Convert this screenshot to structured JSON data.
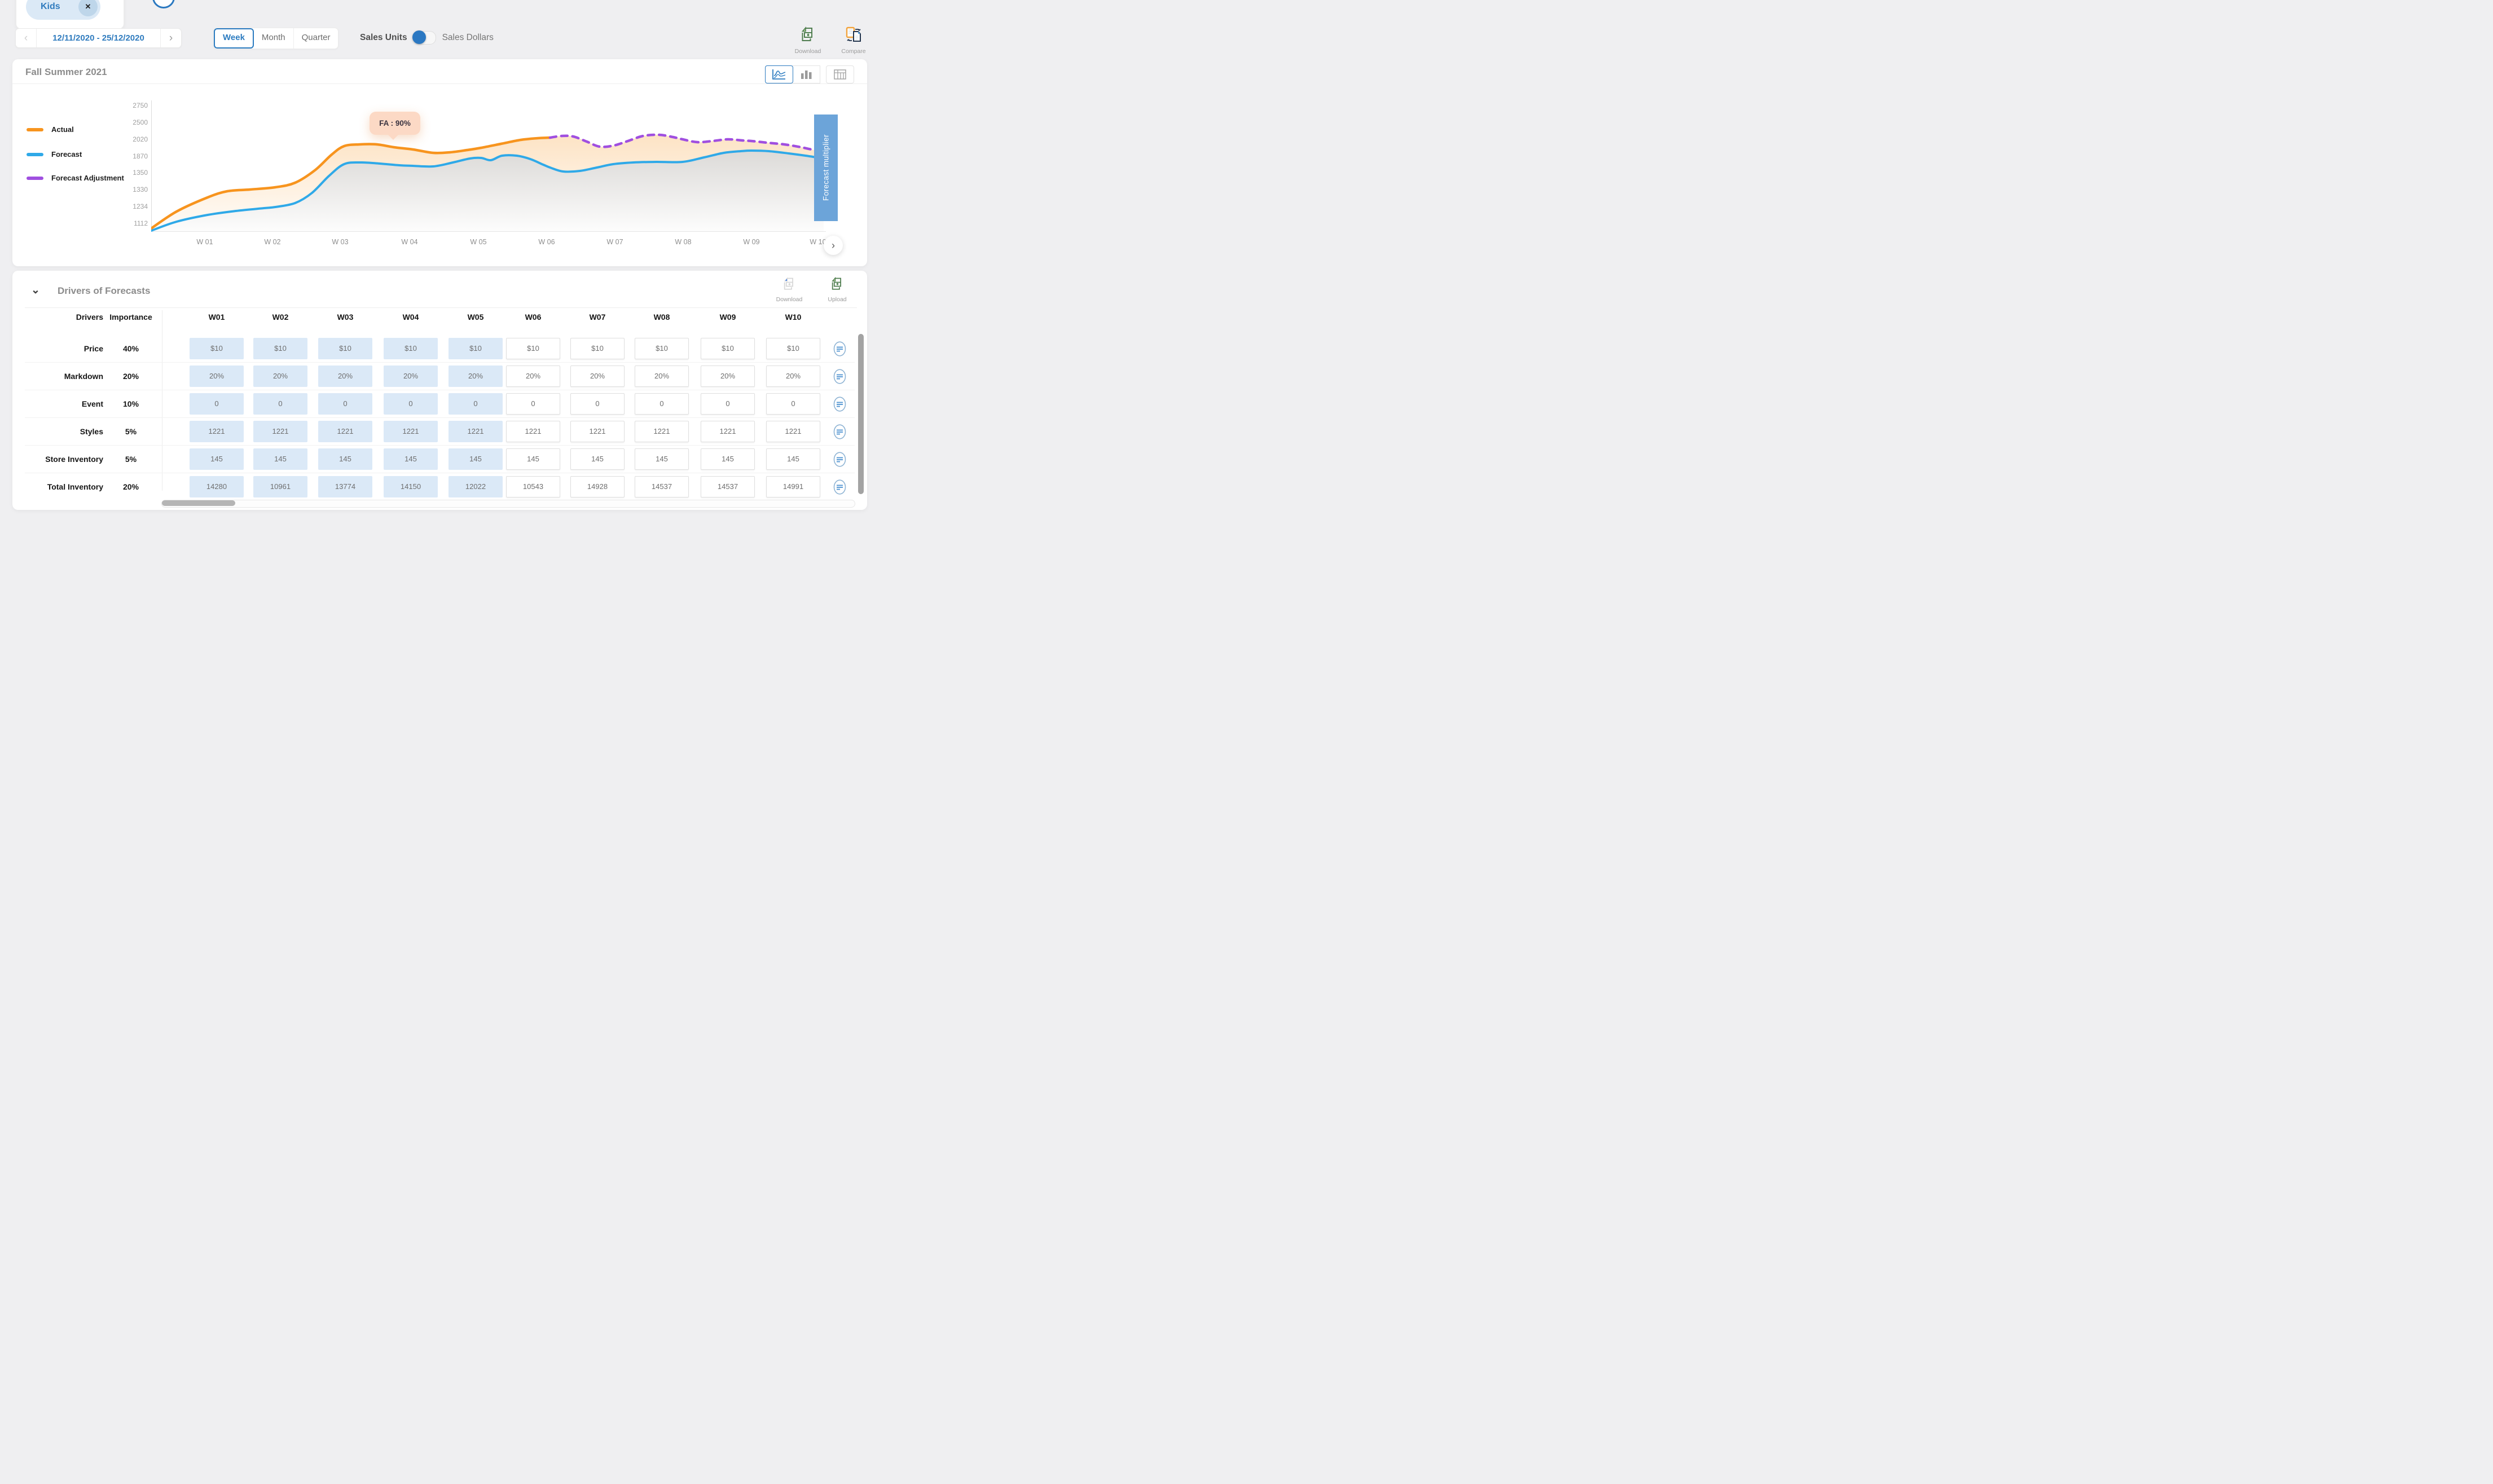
{
  "glyphs": {
    "close": "✕",
    "prev": "‹",
    "next": "›",
    "collapse": "⌄",
    "next_week": "›"
  },
  "topbar": {
    "chip": {
      "label": "Kids"
    },
    "date_nav": {
      "range": "12/11/2020 - 25/12/2020"
    },
    "period_toggle": {
      "options": [
        "Week",
        "Month",
        "Quarter"
      ],
      "selected": "Week"
    },
    "unit_toggle": {
      "left": "Sales Units",
      "right": "Sales Dollars",
      "active": "Sales Units"
    },
    "download_label": "Download",
    "compare_label": "Compare"
  },
  "chart_section": {
    "title": "Fall Summer 2021",
    "selected_view": "line",
    "legend": [
      {
        "label": "Actual",
        "color": "#F7941E"
      },
      {
        "label": "Forecast",
        "color": "#2FA9E8"
      },
      {
        "label": "Forecast Adjustment",
        "color": "#A04FE0"
      }
    ],
    "tooltip": "FA : 90%",
    "multiplier_button": "Forecast multiplier"
  },
  "chart_data": {
    "type": "line",
    "title": "Fall Summer 2021",
    "x": [
      "W 01",
      "W 02",
      "W 03",
      "W 04",
      "W 05",
      "W 06",
      "W 07",
      "W 08",
      "W 09",
      "W 10"
    ],
    "y_ticks": [
      "2750",
      "2500",
      "2020",
      "1870",
      "1350",
      "1330",
      "1234",
      "1112"
    ],
    "grid": false,
    "legend_position": "left",
    "series": [
      {
        "name": "Actual",
        "color": "#F7941E",
        "style": "solid",
        "x": [
          "W 01",
          "W 02",
          "W 03",
          "W 04",
          "W 05",
          "W 06"
        ],
        "values_est": [
          1285,
          1335,
          1955,
          1940,
          1950,
          2050
        ]
      },
      {
        "name": "Forecast",
        "color": "#2FA9E8",
        "style": "solid",
        "x": [
          "W 01",
          "W 02",
          "W 03",
          "W 04",
          "W 05",
          "W 06",
          "W 07",
          "W 08",
          "W 09",
          "W 10"
        ],
        "values_est": [
          1170,
          1230,
          1630,
          1580,
          1820,
          1525,
          1630,
          1700,
          1920,
          1820
        ]
      },
      {
        "name": "Forecast Adjustment",
        "color": "#A04FE0",
        "style": "dashed",
        "x": [
          "W 06",
          "W 07",
          "W 08",
          "W 09",
          "W 10"
        ],
        "values_est": [
          2050,
          1965,
          1995,
          2000,
          1920
        ]
      }
    ],
    "annotation": {
      "label": "FA : 90%",
      "anchor_week": "W 04"
    }
  },
  "drivers": {
    "title": "Drivers of Forecasts",
    "download_label": "Download",
    "upload_label": "Upload",
    "columns": {
      "drivers": "Drivers",
      "importance": "Importance",
      "weeks": [
        "W01",
        "W02",
        "W03",
        "W04",
        "W05",
        "W06",
        "W07",
        "W08",
        "W09",
        "W10"
      ]
    },
    "locked_weeks": 5,
    "rows": [
      {
        "label": "Price",
        "importance": "40%",
        "values": [
          "$10",
          "$10",
          "$10",
          "$10",
          "$10",
          "$10",
          "$10",
          "$10",
          "$10",
          "$10"
        ]
      },
      {
        "label": "Markdown",
        "importance": "20%",
        "values": [
          "20%",
          "20%",
          "20%",
          "20%",
          "20%",
          "20%",
          "20%",
          "20%",
          "20%",
          "20%"
        ]
      },
      {
        "label": "Event",
        "importance": "10%",
        "values": [
          "0",
          "0",
          "0",
          "0",
          "0",
          "0",
          "0",
          "0",
          "0",
          "0"
        ]
      },
      {
        "label": "Styles",
        "importance": "5%",
        "values": [
          "1221",
          "1221",
          "1221",
          "1221",
          "1221",
          "1221",
          "1221",
          "1221",
          "1221",
          "1221"
        ]
      },
      {
        "label": "Store Inventory",
        "importance": "5%",
        "values": [
          "145",
          "145",
          "145",
          "145",
          "145",
          "145",
          "145",
          "145",
          "145",
          "145"
        ]
      },
      {
        "label": "Total Inventory",
        "importance": "20%",
        "values": [
          "14280",
          "10961",
          "13774",
          "14150",
          "12022",
          "10543",
          "14928",
          "14537",
          "14537",
          "14991"
        ]
      }
    ]
  },
  "colors": {
    "accent_blue": "#2B7BC0",
    "actual": "#F7941E",
    "forecast": "#2FA9E8",
    "adjustment": "#A04FE0",
    "locked_cell": "#DBE9F7",
    "multiplier_bg": "#6CA4D9",
    "tooltip_bg": "#FCD9C5",
    "icon_green": "#4F7D4F"
  }
}
